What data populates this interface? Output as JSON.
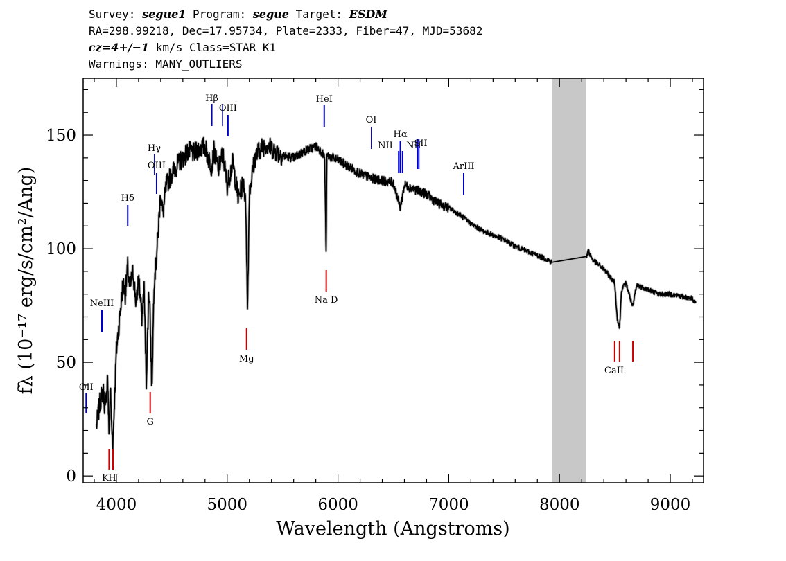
{
  "header": {
    "survey_label": "Survey:",
    "survey": "segue1",
    "program_label": "Program:",
    "program": "segue",
    "target_label": "Target:",
    "target": "ESDM",
    "line2": "RA=298.99218, Dec=17.95734, Plate=2333, Fiber=47, MJD=53682",
    "cz": "cz=4+/−1",
    "cz_rest": " km/s Class=STAR K1",
    "warnings": "Warnings: MANY_OUTLIERS"
  },
  "chart_data": {
    "type": "line",
    "xlabel": "Wavelength (Angstroms)",
    "ylabel": "fλ (10⁻¹⁷ erg/s/cm²/Ang)",
    "xlim": [
      3700,
      9300
    ],
    "ylim": [
      -3,
      175
    ],
    "xticks": [
      4000,
      5000,
      6000,
      7000,
      8000,
      9000
    ],
    "yticks": [
      0,
      50,
      100,
      150
    ],
    "masked_region": [
      7930,
      8240
    ],
    "colors": {
      "line": "#000000",
      "emission_marker": "#0000cc",
      "absorption_marker": "#cc0000",
      "mask": "#c8c8c8"
    },
    "series": [
      {
        "x": [
          3820,
          3850,
          3880,
          3900,
          3920,
          3933,
          3945,
          3955,
          3968,
          3980,
          4000,
          4030,
          4060,
          4080,
          4102,
          4120,
          4150,
          4180,
          4200,
          4230,
          4250,
          4270,
          4290,
          4300,
          4320,
          4340,
          4360,
          4380,
          4400,
          4420,
          4450,
          4500,
          4550,
          4600,
          4650,
          4700,
          4750,
          4800,
          4830,
          4861,
          4880,
          4920,
          4960,
          5000,
          5050,
          5100,
          5150,
          5170,
          5183,
          5200,
          5250,
          5300,
          5350,
          5400,
          5500,
          5600,
          5700,
          5800,
          5850,
          5880,
          5893,
          5900,
          5950,
          6000,
          6100,
          6200,
          6300,
          6400,
          6500,
          6563,
          6600,
          6700,
          6800,
          6900,
          7000,
          7100,
          7200,
          7300,
          7400,
          7500,
          7600,
          7700,
          7800,
          7900,
          7930,
          8240,
          8260,
          8300,
          8400,
          8450,
          8498,
          8520,
          8542,
          8560,
          8600,
          8662,
          8680,
          8700,
          8800,
          8900,
          9000,
          9100,
          9200,
          9230
        ],
        "y": [
          22,
          32,
          38,
          28,
          45,
          18,
          40,
          22,
          15,
          30,
          55,
          70,
          85,
          80,
          92,
          82,
          90,
          75,
          88,
          70,
          82,
          42,
          78,
          80,
          38,
          86,
          95,
          110,
          125,
          115,
          128,
          133,
          137,
          140,
          143,
          142,
          144,
          145,
          140,
          136,
          143,
          135,
          142,
          128,
          138,
          122,
          130,
          116,
          72,
          125,
          140,
          144,
          146,
          144,
          141,
          140,
          143,
          145,
          143,
          140,
          97,
          141,
          140,
          139,
          136,
          133,
          131,
          130,
          129,
          118,
          128,
          126,
          124,
          120,
          118,
          115,
          111,
          108,
          106,
          104,
          101,
          99,
          97,
          95,
          94,
          96,
          99,
          95,
          91,
          88,
          85,
          70,
          65,
          82,
          85,
          74,
          80,
          84,
          82,
          80,
          80,
          79,
          78,
          76
        ]
      }
    ],
    "annotations": [
      {
        "label": "OII",
        "x": 3727,
        "color": "blue",
        "kind": "emission"
      },
      {
        "label": "NeIII",
        "x": 3869,
        "color": "blue",
        "kind": "emission"
      },
      {
        "label": "K",
        "x": 3934,
        "color": "red",
        "kind": "absorption"
      },
      {
        "label": "H",
        "x": 3969,
        "color": "red",
        "kind": "absorption"
      },
      {
        "label": "Hδ",
        "x": 4102,
        "color": "blue",
        "kind": "emission"
      },
      {
        "label": "G",
        "x": 4305,
        "color": "red",
        "kind": "absorption"
      },
      {
        "label": "Hγ",
        "x": 4341,
        "color": "blue",
        "kind": "emission"
      },
      {
        "label": "OIII",
        "x": 4363,
        "color": "blue",
        "kind": "emission"
      },
      {
        "label": "Hβ",
        "x": 4861,
        "color": "blue",
        "kind": "emission"
      },
      {
        "label": "OIII",
        "x": 4959,
        "color": "blue",
        "kind": "emission"
      },
      {
        "label": "OIII",
        "x": 5007,
        "color": "blue",
        "kind": "emission"
      },
      {
        "label": "Mg",
        "x": 5175,
        "color": "red",
        "kind": "absorption"
      },
      {
        "label": "HeI",
        "x": 5876,
        "color": "blue",
        "kind": "emission"
      },
      {
        "label": "Na D",
        "x": 5894,
        "color": "red",
        "kind": "absorption"
      },
      {
        "label": "OI",
        "x": 6300,
        "color": "blue",
        "kind": "emission"
      },
      {
        "label": "NII",
        "x": 6548,
        "color": "blue",
        "kind": "emission"
      },
      {
        "label": "Hα",
        "x": 6563,
        "color": "blue",
        "kind": "emission"
      },
      {
        "label": "NII",
        "x": 6583,
        "color": "blue",
        "kind": "emission"
      },
      {
        "label": "SII",
        "x": 6716,
        "color": "blue",
        "kind": "emission"
      },
      {
        "label": "SII",
        "x": 6730,
        "color": "blue",
        "kind": "emission"
      },
      {
        "label": "ArIII",
        "x": 7135,
        "color": "blue",
        "kind": "emission"
      },
      {
        "label": "CaII",
        "x": 8498,
        "color": "red",
        "kind": "absorption"
      },
      {
        "label": "CaII",
        "x": 8542,
        "color": "red",
        "kind": "absorption"
      },
      {
        "label": "CaII",
        "x": 8662,
        "color": "red",
        "kind": "absorption"
      }
    ]
  }
}
